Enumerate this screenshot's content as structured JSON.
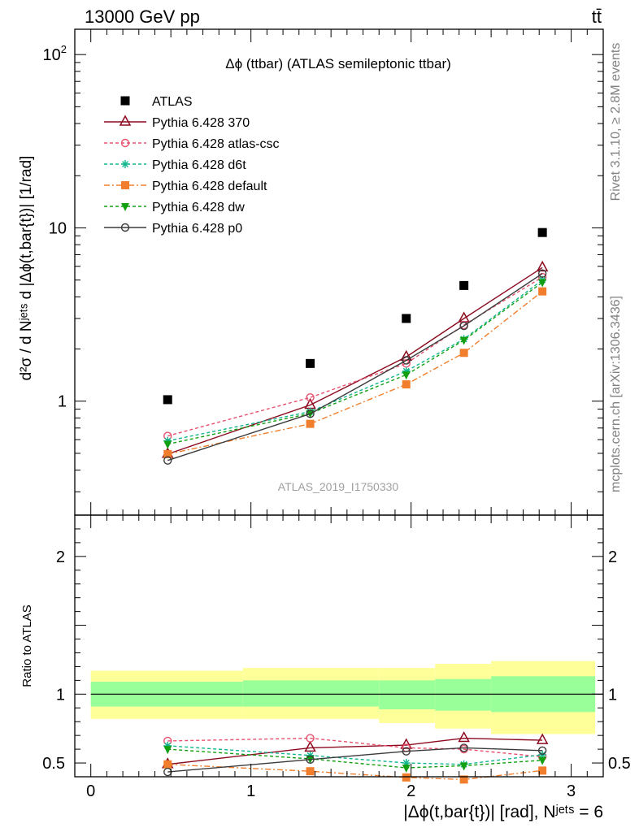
{
  "header": {
    "energy": "13000 GeV pp",
    "process": "tt̄"
  },
  "side_labels": {
    "rivet": "Rivet 3.1.10, ≥ 2.8M events",
    "mcplots": "mcplots.cern.ch [arXiv:1306.3436]"
  },
  "colors": {
    "data": "#000000",
    "p370": "#8b0a1e",
    "atlascsc": "#e8506e",
    "d6t": "#10b68e",
    "default": "#f07e2c",
    "dw": "#12a012",
    "p0": "#3a3a3a",
    "band_outer": "#ffff99",
    "band_inner": "#99ff99"
  },
  "chart_data": [
    {
      "type": "scatter",
      "title": "Δϕ (ttbar) (ATLAS semileptonic ttbar)",
      "analysis_label": "ATLAS_2019_I1750330",
      "ylabel": "d²σ / d Nʲᵉᵗˢ d |Δϕ(t,bar{t})| [1/rad]",
      "xlabel": "",
      "yscale": "log",
      "xlim": [
        -0.1,
        3.2
      ],
      "ylim": [
        0.22,
        140
      ],
      "y_ticks": [
        {
          "value": 1,
          "label": "1"
        },
        {
          "value": 10,
          "label": "10"
        },
        {
          "value": 100,
          "label": "10²"
        }
      ],
      "legend_placement": "top-left",
      "x": [
        0.48,
        1.37,
        1.97,
        2.33,
        2.82
      ],
      "series": [
        {
          "key": "data",
          "name": "ATLAS",
          "style": "square-filled",
          "values": [
            1.02,
            1.65,
            3.0,
            4.65,
            9.4
          ]
        },
        {
          "key": "p370",
          "name": "Pythia 6.428 370",
          "style": "triangle-open",
          "values": [
            0.495,
            0.95,
            1.8,
            3.0,
            5.9
          ]
        },
        {
          "key": "atlascsc",
          "name": "Pythia 6.428 atlas-csc",
          "style": "circle-open",
          "values": [
            0.63,
            1.05,
            1.65,
            2.75,
            5.2
          ]
        },
        {
          "key": "d6t",
          "name": "Pythia 6.428 d6t",
          "style": "star",
          "values": [
            0.59,
            0.87,
            1.49,
            2.28,
            5.0
          ]
        },
        {
          "key": "default",
          "name": "Pythia 6.428 default",
          "style": "square-filled",
          "values": [
            0.495,
            0.74,
            1.25,
            1.9,
            4.3
          ]
        },
        {
          "key": "dw",
          "name": "Pythia 6.428 dw",
          "style": "triangle-down-filled",
          "values": [
            0.565,
            0.85,
            1.42,
            2.25,
            4.85
          ]
        },
        {
          "key": "p0",
          "name": "Pythia 6.428 p0",
          "style": "circle-open",
          "values": [
            0.455,
            0.845,
            1.72,
            2.72,
            5.45
          ]
        }
      ]
    },
    {
      "type": "line",
      "title": "",
      "ylabel": "Ratio to ATLAS",
      "xlabel": "|Δϕ(t,bar{t})| [rad], Nʲᵉᵗˢ = 6",
      "xlim": [
        -0.1,
        3.2
      ],
      "ylim": [
        0.4,
        2.3
      ],
      "x_ticks": [
        0,
        1,
        2,
        3
      ],
      "y_ticks": [
        0.5,
        1,
        2
      ],
      "bands": {
        "edges": [
          0,
          0.95,
          1.8,
          2.15,
          2.5,
          3.15
        ],
        "outer": [
          [
            0.82,
            1.17
          ],
          [
            0.82,
            1.19
          ],
          [
            0.79,
            1.19
          ],
          [
            0.75,
            1.22
          ],
          [
            0.71,
            1.24
          ]
        ],
        "inner": [
          [
            0.91,
            1.09
          ],
          [
            0.91,
            1.1
          ],
          [
            0.89,
            1.1
          ],
          [
            0.88,
            1.11
          ],
          [
            0.87,
            1.13
          ]
        ]
      },
      "x": [
        0.48,
        1.37,
        1.97,
        2.33,
        2.82
      ],
      "series": [
        {
          "key": "p370",
          "name": "Pythia 6.428 370",
          "style": "triangle-open",
          "values": [
            0.49,
            0.61,
            0.63,
            0.68,
            0.665
          ]
        },
        {
          "key": "atlascsc",
          "name": "Pythia 6.428 atlas-csc",
          "style": "circle-open",
          "values": [
            0.66,
            0.68,
            0.61,
            0.6,
            0.545
          ]
        },
        {
          "key": "d6t",
          "name": "Pythia 6.428 d6t",
          "style": "star",
          "values": [
            0.625,
            0.555,
            0.5,
            0.49,
            0.56
          ]
        },
        {
          "key": "default",
          "name": "Pythia 6.428 default",
          "style": "square-filled",
          "values": [
            0.49,
            0.44,
            0.395,
            0.38,
            0.445
          ]
        },
        {
          "key": "dw",
          "name": "Pythia 6.428 dw",
          "style": "triangle-down-filled",
          "values": [
            0.6,
            0.53,
            0.465,
            0.48,
            0.52
          ]
        },
        {
          "key": "p0",
          "name": "Pythia 6.428 p0",
          "style": "circle-open",
          "values": [
            0.435,
            0.525,
            0.585,
            0.61,
            0.59
          ]
        }
      ]
    }
  ]
}
